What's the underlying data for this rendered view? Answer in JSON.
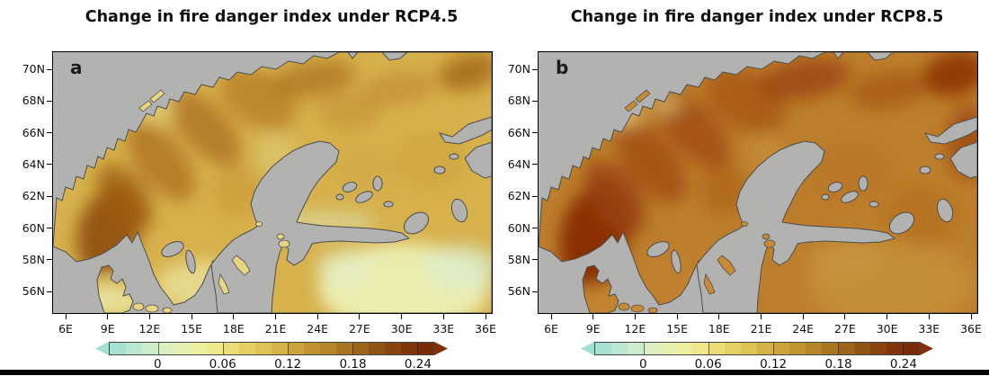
{
  "figure": {
    "map_colors": {
      "sea": "#b2b2b1",
      "coast": "#4d4d4d",
      "frame": "#000000"
    },
    "colorbar": {
      "range": [
        -0.045,
        0.255
      ],
      "level_step": 0.015,
      "extend": "both",
      "tick_values": [
        0,
        0.06,
        0.12,
        0.18,
        0.24
      ],
      "tick_labels": [
        "0",
        "0.06",
        "0.12",
        "0.18",
        "0.24"
      ],
      "left_arrow_color": "#a0e0d2",
      "right_arrow_color": "#82300a",
      "segment_colors": [
        "#a7e1d3",
        "#b9e7d2",
        "#cdecce",
        "#dcefc1",
        "#e6f0b2",
        "#edeea0",
        "#eee88c",
        "#ebdc76",
        "#e5d065",
        "#dec355",
        "#d5b447",
        "#cba53b",
        "#c09530",
        "#b48628",
        "#a87621",
        "#9b661b",
        "#8e5615",
        "#8a4410",
        "#80350b",
        "#772b07"
      ]
    },
    "panels": [
      {
        "label": "a",
        "title": "Change in fire danger index under RCP4.5",
        "lat_ticks": [
          "70N",
          "68N",
          "66N",
          "64N",
          "62N",
          "60N",
          "58N",
          "56N"
        ],
        "lon_ticks": [
          "6E",
          "9E",
          "12E",
          "15E",
          "18E",
          "21E",
          "24E",
          "27E",
          "30E",
          "33E",
          "36E"
        ],
        "field": {
          "base": "#d6b14c",
          "island_fill": "#e6d583",
          "blobs": [
            [
              62,
              198,
              34,
              50,
              20,
              "#8f4d0e",
              0.9
            ],
            [
              80,
              162,
              24,
              42,
              -35,
              "#9e5c13",
              0.8
            ],
            [
              120,
              122,
              26,
              52,
              -38,
              "#ac6d1b",
              0.75
            ],
            [
              170,
              85,
              25,
              52,
              -42,
              "#aa6a19",
              0.7
            ],
            [
              228,
              52,
              30,
              46,
              -58,
              "#b07420",
              0.65
            ],
            [
              290,
              30,
              48,
              20,
              -10,
              "#ad701e",
              0.7
            ],
            [
              385,
              40,
              42,
              18,
              -8,
              "#bb8229",
              0.55
            ],
            [
              462,
              22,
              34,
              20,
              -15,
              "#a3650f",
              0.8
            ],
            [
              330,
              65,
              35,
              22,
              0,
              "#bd8c2e",
              0.5
            ],
            [
              420,
              120,
              40,
              32,
              0,
              "#c99e38",
              0.45
            ],
            [
              345,
              130,
              35,
              25,
              0,
              "#cba23c",
              0.4
            ],
            [
              390,
              262,
              95,
              50,
              0,
              "#edefb4",
              0.95
            ],
            [
              455,
              240,
              40,
              26,
              0,
              "#daeccc",
              0.75
            ],
            [
              325,
              240,
              32,
              20,
              0,
              "#e2eec6",
              0.7
            ],
            [
              162,
              260,
              48,
              28,
              0,
              "#e8e29a",
              0.8
            ],
            [
              62,
              276,
              36,
              18,
              0,
              "#eae6a2",
              0.9
            ],
            [
              255,
              125,
              22,
              38,
              -30,
              "#e0cf7d",
              0.55
            ],
            [
              112,
              62,
              22,
              15,
              0,
              "#e4d685",
              0.65
            ],
            [
              205,
              155,
              28,
              30,
              0,
              "#c59432",
              0.5
            ],
            [
              300,
              190,
              60,
              14,
              0,
              "#ddebc0",
              0.5
            ]
          ]
        }
      },
      {
        "label": "b",
        "title": "Change in fire danger index under RCP8.5",
        "lat_ticks": [
          "70N",
          "68N",
          "66N",
          "64N",
          "62N",
          "60N",
          "58N",
          "56N"
        ],
        "lon_ticks": [
          "6E",
          "9E",
          "12E",
          "15E",
          "18E",
          "21E",
          "24E",
          "27E",
          "30E",
          "33E",
          "36E"
        ],
        "field": {
          "base": "#bd7e2c",
          "island_fill": "#c78c33",
          "blobs": [
            [
              62,
              205,
              38,
              58,
              12,
              "#882c06",
              0.95
            ],
            [
              85,
              162,
              26,
              46,
              -35,
              "#983f08",
              0.85
            ],
            [
              125,
              122,
              28,
              54,
              -38,
              "#a04c0f",
              0.8
            ],
            [
              172,
              86,
              26,
              54,
              -42,
              "#9d480c",
              0.75
            ],
            [
              230,
              54,
              32,
              48,
              -58,
              "#a35210",
              0.7
            ],
            [
              295,
              30,
              52,
              22,
              -10,
              "#9a450b",
              0.8
            ],
            [
              390,
              42,
              45,
              20,
              -8,
              "#a45610",
              0.7
            ],
            [
              463,
              24,
              36,
              24,
              -15,
              "#8c3507",
              0.9
            ],
            [
              478,
              100,
              24,
              42,
              0,
              "#9a470d",
              0.75
            ],
            [
              350,
              132,
              45,
              34,
              0,
              "#b5701f",
              0.5
            ],
            [
              300,
              172,
              32,
              24,
              0,
              "#ba7823",
              0.45
            ],
            [
              392,
              258,
              92,
              52,
              0,
              "#c68e35",
              0.85
            ],
            [
              340,
              232,
              40,
              24,
              0,
              "#ca9740",
              0.6
            ],
            [
              162,
              258,
              52,
              32,
              0,
              "#c18230",
              0.7
            ],
            [
              95,
              70,
              20,
              13,
              0,
              "#dfc374",
              0.85
            ],
            [
              142,
              58,
              17,
              11,
              0,
              "#dcbe6c",
              0.75
            ],
            [
              258,
              122,
              20,
              34,
              -30,
              "#cc9640",
              0.55
            ],
            [
              205,
              152,
              26,
              30,
              0,
              "#aa5d13",
              0.6
            ],
            [
              425,
              182,
              42,
              34,
              0,
              "#b26a1b",
              0.5
            ],
            [
              62,
              277,
              34,
              17,
              0,
              "#c5852f",
              0.85
            ]
          ]
        }
      }
    ]
  },
  "chart_data": {
    "type": "heatmap",
    "subtype": "filled-contour-map",
    "region_shown": "Fennoscandia (Norway, Sweden, Finland, Denmark, Baltic states, NW Russia)",
    "panels": [
      {
        "label": "a",
        "title": "Change in fire danger index under RCP4.5",
        "scenario": "RCP4.5",
        "x_axis": {
          "label": "longitude",
          "ticks": [
            "6E",
            "9E",
            "12E",
            "15E",
            "18E",
            "21E",
            "24E",
            "27E",
            "30E",
            "33E",
            "36E"
          ]
        },
        "y_axis": {
          "label": "latitude",
          "ticks": [
            "70N",
            "68N",
            "66N",
            "64N",
            "62N",
            "60N",
            "58N",
            "56N"
          ]
        },
        "extent": {
          "lon": [
            5,
            38.5
          ],
          "lat": [
            54.7,
            71.2
          ]
        },
        "regions": [
          {
            "region": "southern Norway (7-9E, 60-62N)",
            "approx_value": 0.23
          },
          {
            "region": "Scandes mountain belt along Norway-Sweden border",
            "approx_value": 0.16
          },
          {
            "region": "northern Norway coast",
            "approx_value": 0.14
          },
          {
            "region": "central Sweden",
            "approx_value": 0.1
          },
          {
            "region": "Finland",
            "approx_value": 0.1
          },
          {
            "region": "Kola peninsula / NE corner",
            "approx_value": 0.15
          },
          {
            "region": "Baltic states and NW Russia (SE corner)",
            "approx_value": 0.02
          },
          {
            "region": "southern Sweden and Denmark",
            "approx_value": 0.06
          }
        ]
      },
      {
        "label": "b",
        "title": "Change in fire danger index under RCP8.5",
        "scenario": "RCP8.5",
        "x_axis": {
          "label": "longitude",
          "ticks": [
            "6E",
            "9E",
            "12E",
            "15E",
            "18E",
            "21E",
            "24E",
            "27E",
            "30E",
            "33E",
            "36E"
          ]
        },
        "y_axis": {
          "label": "latitude",
          "ticks": [
            "70N",
            "68N",
            "66N",
            "64N",
            "62N",
            "60N",
            "58N",
            "56N"
          ]
        },
        "extent": {
          "lon": [
            5,
            38.5
          ],
          "lat": [
            54.7,
            71.2
          ]
        },
        "regions": [
          {
            "region": "southern Norway (7-9E, 60-62N)",
            "approx_value": 0.27
          },
          {
            "region": "Scandes mountain belt along Norway-Sweden border",
            "approx_value": 0.21
          },
          {
            "region": "northern Norway coast",
            "approx_value": 0.2
          },
          {
            "region": "central Sweden",
            "approx_value": 0.14
          },
          {
            "region": "Finland",
            "approx_value": 0.15
          },
          {
            "region": "Kola peninsula / NE corner",
            "approx_value": 0.24
          },
          {
            "region": "Baltic states and NW Russia (SE corner)",
            "approx_value": 0.11
          },
          {
            "region": "southern Sweden and Denmark",
            "approx_value": 0.12
          }
        ]
      }
    ],
    "colorbar": {
      "orientation": "horizontal",
      "tick_values": [
        0,
        0.06,
        0.12,
        0.18,
        0.24
      ],
      "tick_labels": [
        "0",
        "0.06",
        "0.12",
        "0.18",
        "0.24"
      ],
      "level_step": 0.015,
      "range": [
        -0.045,
        0.255
      ],
      "extend": "both",
      "colormap_description": "light teal through pale yellow-green, yellow, gold, ochre, brown to dark red-brown"
    },
    "grid": false,
    "legend_position": "bottom colorbar under each panel"
  }
}
